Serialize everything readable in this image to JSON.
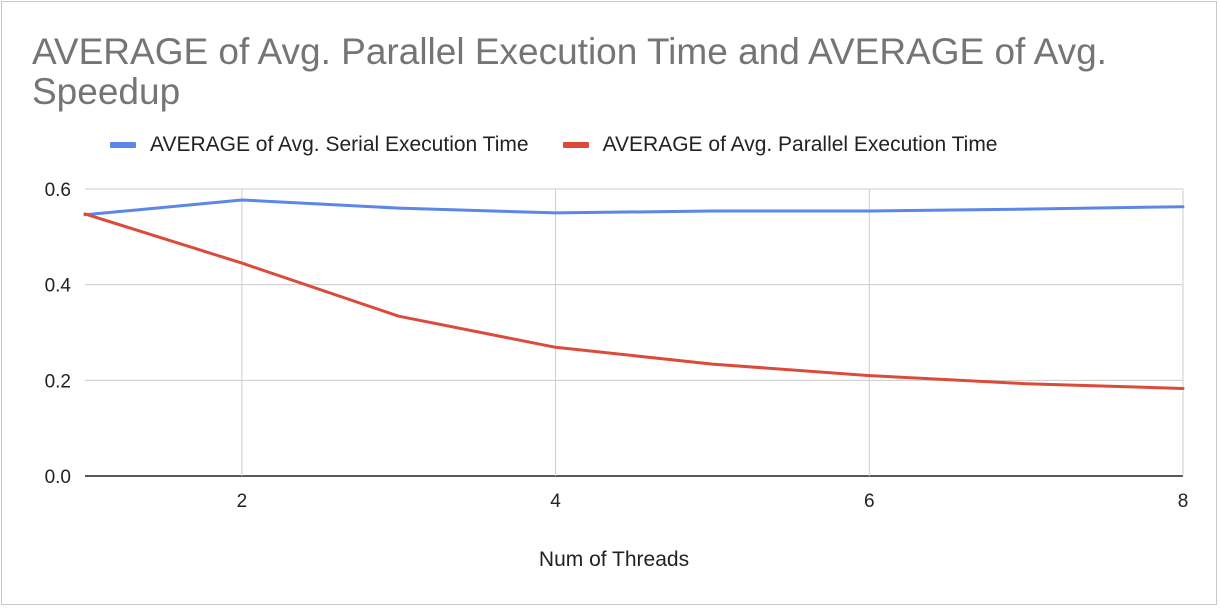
{
  "colors": {
    "serial": "#5b87e8",
    "parallel": "#dc4b3a",
    "grid": "#cccccc",
    "axis": "#222222"
  },
  "chart_data": {
    "type": "line",
    "title": "AVERAGE of Avg. Parallel Execution Time and AVERAGE of Avg. Speedup",
    "xlabel": "Num of Threads",
    "ylabel": "",
    "x": [
      1,
      2,
      3,
      4,
      5,
      6,
      7,
      8
    ],
    "xlim": [
      1,
      8
    ],
    "ylim": [
      0,
      0.6
    ],
    "xticks": [
      "2",
      "4",
      "6",
      "8"
    ],
    "xtick_values": [
      2,
      4,
      6,
      8
    ],
    "yticks": [
      "0.0",
      "0.2",
      "0.4",
      "0.6"
    ],
    "ytick_values": [
      0,
      0.2,
      0.4,
      0.6
    ],
    "grid": true,
    "legend": "top",
    "series": [
      {
        "name": "AVERAGE of Avg. Serial Execution Time",
        "values": [
          0.546,
          0.577,
          0.56,
          0.55,
          0.554,
          0.554,
          0.558,
          0.563
        ]
      },
      {
        "name": "AVERAGE of Avg. Parallel Execution Time",
        "values": [
          0.548,
          0.445,
          0.334,
          0.269,
          0.234,
          0.21,
          0.193,
          0.183
        ]
      }
    ]
  }
}
